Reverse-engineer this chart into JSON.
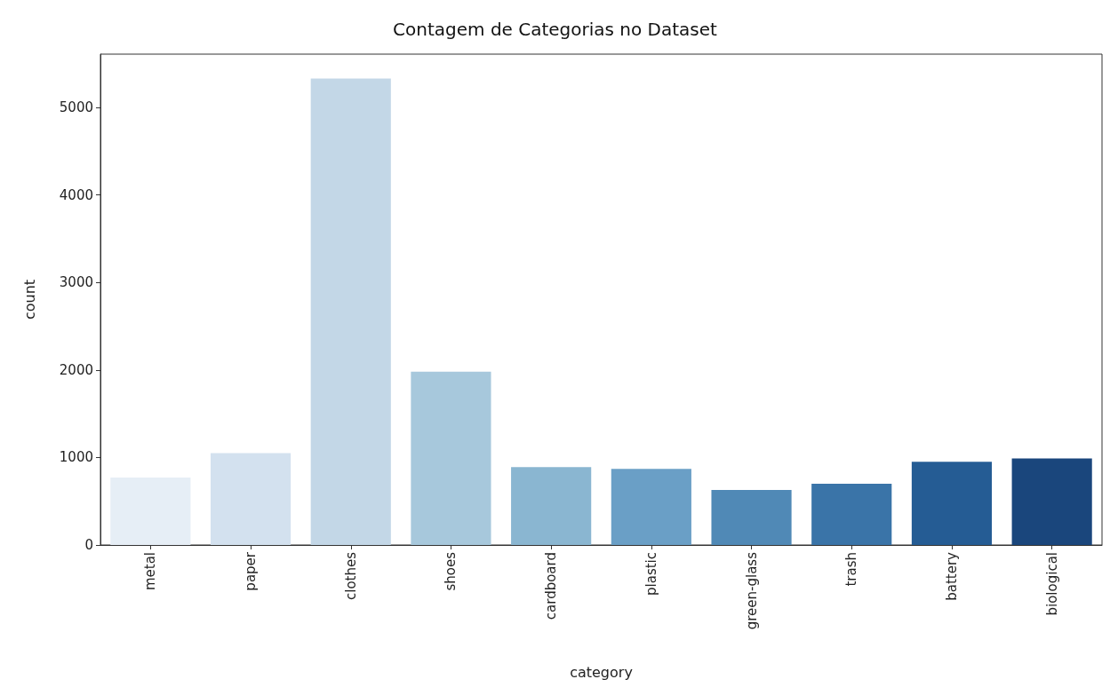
{
  "chart_data": {
    "type": "bar",
    "title": "Contagem de Categorias no Dataset",
    "xlabel": "category",
    "ylabel": "count",
    "categories": [
      "metal",
      "paper",
      "clothes",
      "shoes",
      "cardboard",
      "plastic",
      "green-glass",
      "trash",
      "battery",
      "biological"
    ],
    "values": [
      770,
      1050,
      5330,
      1980,
      890,
      870,
      630,
      700,
      950,
      990
    ],
    "colors": [
      "#e6eef6",
      "#d3e1ef",
      "#c3d7e7",
      "#a7c8dc",
      "#8ab6d1",
      "#6a9fc6",
      "#5089b6",
      "#3a74a8",
      "#255c94",
      "#1a467c"
    ],
    "ylim": [
      0,
      5610
    ],
    "yticks": [
      0,
      1000,
      2000,
      3000,
      4000,
      5000
    ],
    "grid": false
  }
}
